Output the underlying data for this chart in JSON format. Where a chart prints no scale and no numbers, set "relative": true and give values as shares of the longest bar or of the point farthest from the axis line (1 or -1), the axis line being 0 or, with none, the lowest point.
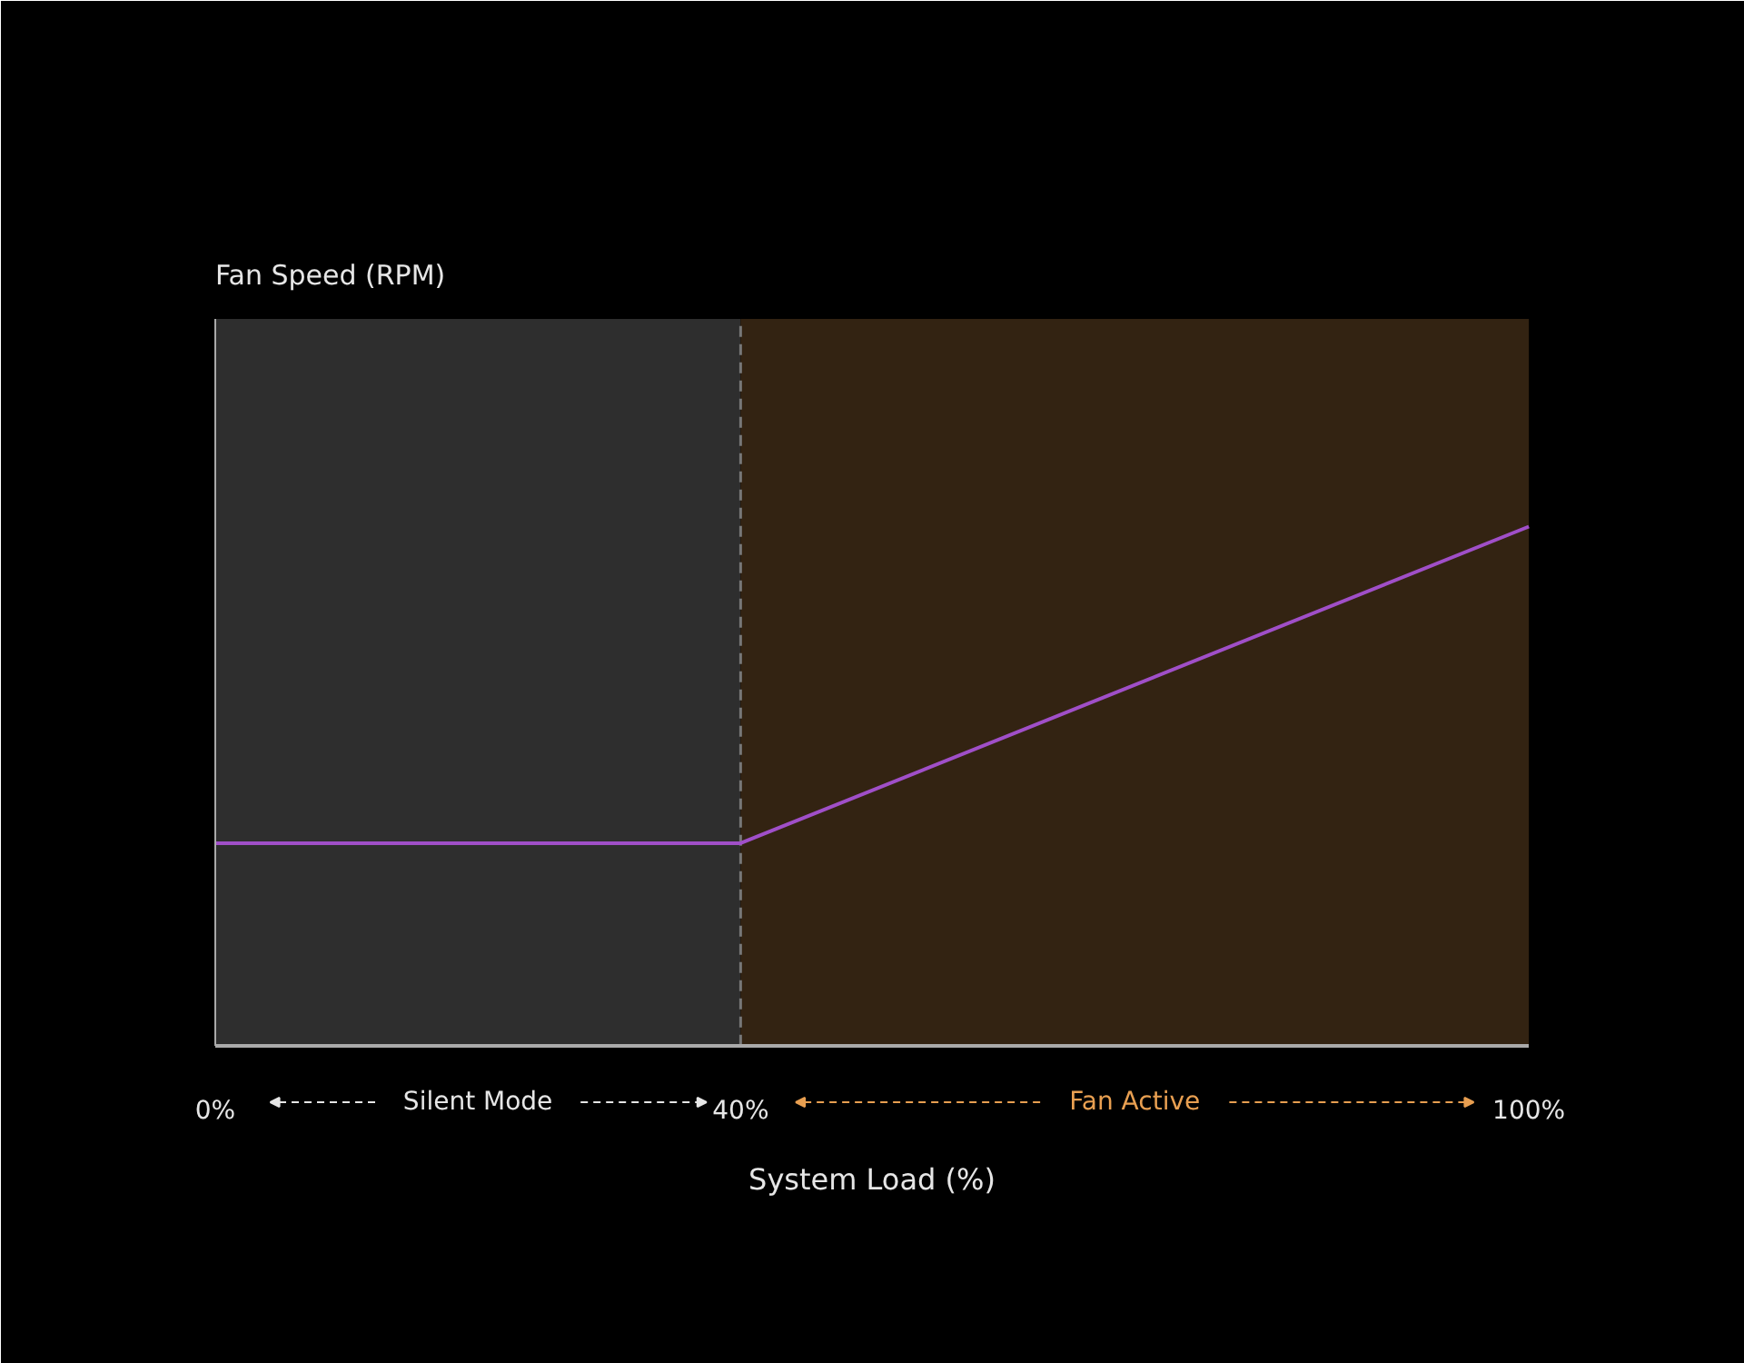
{
  "chart_data": {
    "type": "line",
    "relative": true,
    "annotations": [
      "Fan Speed (RPM)"
    ],
    "xlabel": "System Load (%)",
    "x": [
      0,
      40,
      100
    ],
    "series": [
      {
        "color": "#a04fc8",
        "values": [
          0.39,
          0.39,
          1
        ]
      }
    ],
    "xlim": [
      0,
      100
    ],
    "xticks": [
      {
        "value": 0,
        "label": "0%"
      },
      {
        "value": 40,
        "label": "40%"
      },
      {
        "value": 100,
        "label": "100%"
      }
    ],
    "bands": [
      {
        "axis": "x",
        "from": 0,
        "to": 40,
        "label": "Silent Mode",
        "color": "#2e2e2e"
      },
      {
        "axis": "x",
        "from": 40,
        "to": 100,
        "label": "Fan Active",
        "color": "#332312"
      }
    ],
    "ref_lines": [
      {
        "axis": "x",
        "value": 40,
        "color": "#777777",
        "line_style": "dashed"
      }
    ],
    "grid": false
  }
}
